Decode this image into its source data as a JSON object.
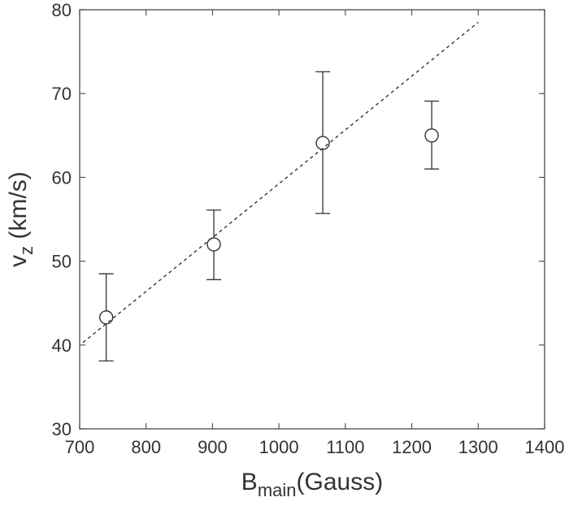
{
  "chart_data": {
    "type": "scatter",
    "xlabel": {
      "main": "B",
      "sub": "main",
      "rest": "(Gauss)"
    },
    "ylabel": {
      "main": "v",
      "sub": "z",
      "rest": " (km/s)"
    },
    "xlim": [
      700,
      1400
    ],
    "ylim": [
      30,
      80
    ],
    "xticks": [
      700,
      800,
      900,
      1000,
      1100,
      1200,
      1300,
      1400
    ],
    "yticks": [
      30,
      40,
      50,
      60,
      70,
      80
    ],
    "grid": false,
    "series": [
      {
        "marker": "open-circle",
        "points": [
          {
            "x": 740,
            "y": 43.3,
            "err_low": 38.1,
            "err_high": 48.5
          },
          {
            "x": 902,
            "y": 52.0,
            "err_low": 47.8,
            "err_high": 56.1
          },
          {
            "x": 1066,
            "y": 64.1,
            "err_low": 55.7,
            "err_high": 72.6
          },
          {
            "x": 1230,
            "y": 65.0,
            "err_low": 61.0,
            "err_high": 69.1
          }
        ]
      }
    ],
    "fit_line": {
      "style": "dashed",
      "x": [
        705,
        1300
      ],
      "y": [
        40.3,
        78.5
      ]
    },
    "colors": {
      "axis": "#555555",
      "marks": "#333333",
      "text": "#333333"
    }
  }
}
